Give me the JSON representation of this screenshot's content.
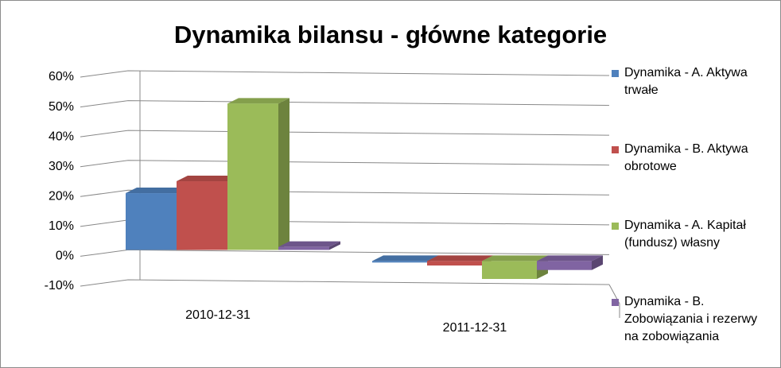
{
  "chart_data": {
    "type": "bar3d",
    "title": "Dynamika bilansu - główne kategorie",
    "categories": [
      "2010-12-31",
      "2011-12-31"
    ],
    "series": [
      {
        "name": "Dynamika - A. Aktywa trwałe",
        "color": "#4f81bd",
        "values": [
          19,
          -0.5
        ]
      },
      {
        "name": "Dynamika - B. Aktywa obrotowe",
        "color": "#c0504d",
        "values": [
          23,
          -1.5
        ]
      },
      {
        "name": "Dynamika - A. Kapitał (fundusz) własny",
        "color": "#9bbb59",
        "values": [
          49,
          -6
        ]
      },
      {
        "name": "Dynamika - B. Zobowiązania i rezerwy na zobowiązania",
        "color": "#8064a2",
        "values": [
          1,
          -3
        ]
      }
    ],
    "ylim": [
      -10,
      60
    ],
    "yticks": [
      {
        "value": -10,
        "label": "-10%"
      },
      {
        "value": 0,
        "label": "0%"
      },
      {
        "value": 10,
        "label": "10%"
      },
      {
        "value": 20,
        "label": "20%"
      },
      {
        "value": 30,
        "label": "30%"
      },
      {
        "value": 40,
        "label": "40%"
      },
      {
        "value": 50,
        "label": "50%"
      },
      {
        "value": 60,
        "label": "60%"
      }
    ],
    "grid": true,
    "legend": "right"
  }
}
